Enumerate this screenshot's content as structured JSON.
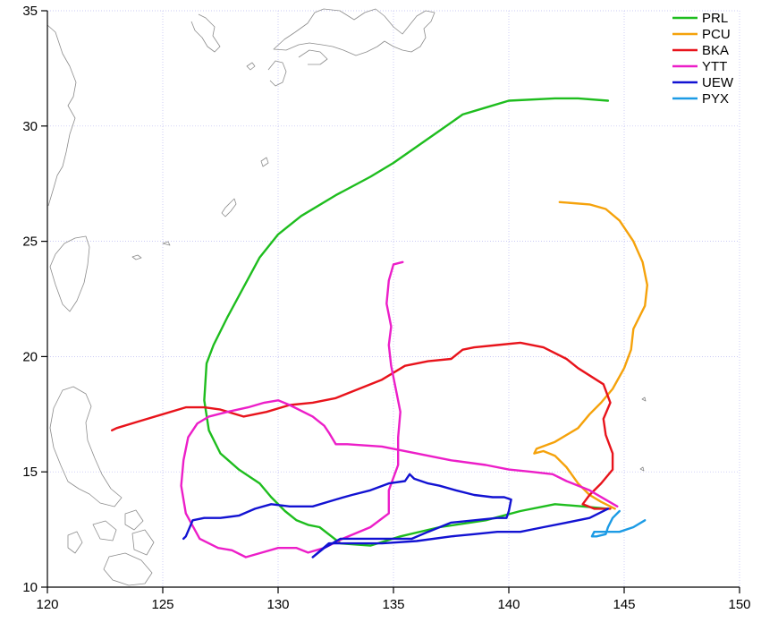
{
  "chart_data": {
    "type": "line",
    "title": "",
    "xlabel": "",
    "ylabel": "",
    "xlim": [
      120,
      150
    ],
    "ylim": [
      10,
      35
    ],
    "x_ticks": [
      "120",
      "125",
      "130",
      "135",
      "140",
      "145",
      "150"
    ],
    "y_ticks": [
      "10",
      "15",
      "20",
      "25",
      "30",
      "35"
    ],
    "grid": true,
    "legend_position": "top-right",
    "series": [
      {
        "name": "PRL",
        "color": "#1ebd1e",
        "points": [
          [
            144.3,
            13.4
          ],
          [
            143.2,
            13.5
          ],
          [
            142.0,
            13.6
          ],
          [
            140.5,
            13.3
          ],
          [
            139.0,
            12.9
          ],
          [
            137.0,
            12.6
          ],
          [
            135.3,
            12.2
          ],
          [
            134.0,
            11.8
          ],
          [
            132.7,
            11.9
          ],
          [
            131.8,
            12.6
          ],
          [
            131.3,
            12.7
          ],
          [
            130.8,
            12.9
          ],
          [
            130.3,
            13.3
          ],
          [
            129.7,
            13.9
          ],
          [
            129.2,
            14.5
          ],
          [
            128.3,
            15.1
          ],
          [
            127.5,
            15.8
          ],
          [
            127.0,
            16.8
          ],
          [
            126.8,
            18.1
          ],
          [
            126.9,
            19.7
          ],
          [
            127.2,
            20.5
          ],
          [
            127.8,
            21.7
          ],
          [
            128.5,
            23.0
          ],
          [
            129.2,
            24.3
          ],
          [
            130.0,
            25.3
          ],
          [
            131.0,
            26.1
          ],
          [
            132.5,
            27.0
          ],
          [
            134.0,
            27.8
          ],
          [
            135.0,
            28.4
          ],
          [
            136.0,
            29.1
          ],
          [
            137.0,
            29.8
          ],
          [
            138.0,
            30.5
          ],
          [
            139.0,
            30.8
          ],
          [
            140.0,
            31.1
          ],
          [
            142.0,
            31.2
          ],
          [
            143.0,
            31.2
          ],
          [
            144.3,
            31.1
          ]
        ]
      },
      {
        "name": "PCU",
        "color": "#f5a20b",
        "points": [
          [
            144.6,
            13.4
          ],
          [
            144.0,
            13.7
          ],
          [
            143.5,
            14.0
          ],
          [
            143.0,
            14.5
          ],
          [
            142.5,
            15.2
          ],
          [
            142.0,
            15.7
          ],
          [
            141.5,
            15.9
          ],
          [
            141.1,
            15.8
          ],
          [
            141.2,
            16.0
          ],
          [
            142.0,
            16.3
          ],
          [
            143.0,
            16.9
          ],
          [
            143.5,
            17.5
          ],
          [
            144.0,
            18.0
          ],
          [
            144.5,
            18.6
          ],
          [
            145.0,
            19.5
          ],
          [
            145.3,
            20.3
          ],
          [
            145.4,
            21.2
          ],
          [
            145.9,
            22.2
          ],
          [
            146.0,
            23.1
          ],
          [
            145.8,
            24.1
          ],
          [
            145.4,
            25.0
          ],
          [
            144.8,
            25.9
          ],
          [
            144.2,
            26.4
          ],
          [
            143.5,
            26.6
          ],
          [
            142.2,
            26.7
          ]
        ]
      },
      {
        "name": "BKA",
        "color": "#e8131b",
        "points": [
          [
            144.4,
            13.4
          ],
          [
            143.7,
            13.4
          ],
          [
            143.2,
            13.6
          ],
          [
            143.5,
            14.0
          ],
          [
            144.0,
            14.5
          ],
          [
            144.5,
            15.1
          ],
          [
            144.5,
            15.8
          ],
          [
            144.2,
            16.6
          ],
          [
            144.1,
            17.3
          ],
          [
            144.4,
            18.0
          ],
          [
            144.1,
            18.8
          ],
          [
            143.0,
            19.5
          ],
          [
            142.5,
            19.9
          ],
          [
            141.5,
            20.4
          ],
          [
            140.5,
            20.6
          ],
          [
            139.5,
            20.5
          ],
          [
            138.5,
            20.4
          ],
          [
            138.0,
            20.3
          ],
          [
            137.5,
            19.9
          ],
          [
            136.5,
            19.8
          ],
          [
            135.5,
            19.6
          ],
          [
            134.5,
            19.0
          ],
          [
            133.5,
            18.6
          ],
          [
            132.5,
            18.2
          ],
          [
            131.5,
            18.0
          ],
          [
            130.5,
            17.9
          ],
          [
            129.5,
            17.6
          ],
          [
            128.5,
            17.4
          ],
          [
            127.5,
            17.7
          ],
          [
            126.8,
            17.8
          ],
          [
            126.0,
            17.8
          ],
          [
            125.0,
            17.5
          ],
          [
            124.0,
            17.2
          ],
          [
            123.0,
            16.9
          ],
          [
            122.8,
            16.8
          ]
        ]
      },
      {
        "name": "YTT",
        "color": "#ec1ec8",
        "points": [
          [
            144.7,
            13.5
          ],
          [
            143.5,
            14.2
          ],
          [
            142.5,
            14.6
          ],
          [
            141.9,
            14.9
          ],
          [
            141.0,
            15.0
          ],
          [
            140.0,
            15.1
          ],
          [
            139.0,
            15.3
          ],
          [
            137.5,
            15.5
          ],
          [
            136.0,
            15.8
          ],
          [
            134.5,
            16.1
          ],
          [
            133.0,
            16.2
          ],
          [
            132.5,
            16.2
          ],
          [
            132.2,
            16.7
          ],
          [
            132.0,
            17.0
          ],
          [
            131.5,
            17.4
          ],
          [
            130.5,
            17.9
          ],
          [
            130.0,
            18.1
          ],
          [
            129.4,
            18.0
          ],
          [
            128.7,
            17.8
          ],
          [
            127.8,
            17.6
          ],
          [
            127.0,
            17.4
          ],
          [
            126.5,
            17.1
          ],
          [
            126.1,
            16.5
          ],
          [
            125.9,
            15.5
          ],
          [
            125.8,
            14.4
          ],
          [
            126.0,
            13.2
          ],
          [
            126.6,
            12.1
          ],
          [
            127.4,
            11.7
          ],
          [
            128.0,
            11.6
          ],
          [
            128.6,
            11.3
          ],
          [
            129.3,
            11.5
          ],
          [
            130.0,
            11.7
          ],
          [
            130.8,
            11.7
          ],
          [
            131.3,
            11.5
          ],
          [
            132.0,
            11.7
          ],
          [
            132.8,
            12.1
          ],
          [
            134.0,
            12.6
          ],
          [
            134.8,
            13.2
          ],
          [
            134.8,
            14.2
          ],
          [
            135.2,
            15.3
          ],
          [
            135.2,
            16.5
          ],
          [
            135.3,
            17.6
          ],
          [
            135.1,
            18.6
          ],
          [
            134.9,
            19.6
          ],
          [
            134.8,
            20.5
          ],
          [
            134.9,
            21.3
          ],
          [
            134.7,
            22.3
          ],
          [
            134.8,
            23.3
          ],
          [
            135.0,
            24.0
          ],
          [
            135.4,
            24.1
          ]
        ]
      },
      {
        "name": "UEW",
        "color": "#1212d2",
        "points": [
          [
            144.3,
            13.4
          ],
          [
            143.5,
            13.0
          ],
          [
            142.5,
            12.8
          ],
          [
            141.5,
            12.6
          ],
          [
            140.5,
            12.4
          ],
          [
            139.5,
            12.4
          ],
          [
            138.5,
            12.3
          ],
          [
            137.5,
            12.2
          ],
          [
            136.0,
            12.0
          ],
          [
            134.5,
            11.9
          ],
          [
            133.0,
            11.9
          ],
          [
            132.2,
            11.9
          ],
          [
            131.5,
            11.3
          ],
          [
            132.0,
            11.7
          ],
          [
            132.7,
            12.1
          ],
          [
            134.0,
            12.1
          ],
          [
            135.0,
            12.1
          ],
          [
            135.8,
            12.1
          ],
          [
            136.5,
            12.4
          ],
          [
            137.5,
            12.8
          ],
          [
            138.5,
            12.9
          ],
          [
            139.5,
            13.0
          ],
          [
            139.9,
            13.0
          ],
          [
            140.0,
            13.3
          ],
          [
            140.1,
            13.8
          ],
          [
            139.8,
            13.9
          ],
          [
            139.3,
            13.9
          ],
          [
            138.5,
            14.0
          ],
          [
            137.7,
            14.2
          ],
          [
            137.0,
            14.4
          ],
          [
            136.5,
            14.5
          ],
          [
            135.9,
            14.7
          ],
          [
            135.7,
            14.9
          ],
          [
            135.5,
            14.6
          ],
          [
            134.8,
            14.5
          ],
          [
            134.0,
            14.2
          ],
          [
            133.2,
            14.0
          ],
          [
            132.5,
            13.8
          ],
          [
            131.5,
            13.5
          ],
          [
            130.5,
            13.5
          ],
          [
            129.7,
            13.6
          ],
          [
            129.0,
            13.4
          ],
          [
            128.3,
            13.1
          ],
          [
            127.5,
            13.0
          ],
          [
            126.8,
            13.0
          ],
          [
            126.3,
            12.9
          ],
          [
            126.0,
            12.2
          ],
          [
            125.9,
            12.1
          ]
        ]
      },
      {
        "name": "PYX",
        "color": "#1c9be5",
        "points": [
          [
            144.8,
            13.3
          ],
          [
            144.5,
            13.0
          ],
          [
            144.3,
            12.6
          ],
          [
            144.2,
            12.3
          ],
          [
            143.8,
            12.2
          ],
          [
            143.6,
            12.2
          ],
          [
            143.7,
            12.4
          ],
          [
            144.2,
            12.4
          ],
          [
            144.8,
            12.4
          ],
          [
            145.4,
            12.6
          ],
          [
            145.9,
            12.9
          ]
        ]
      }
    ]
  }
}
